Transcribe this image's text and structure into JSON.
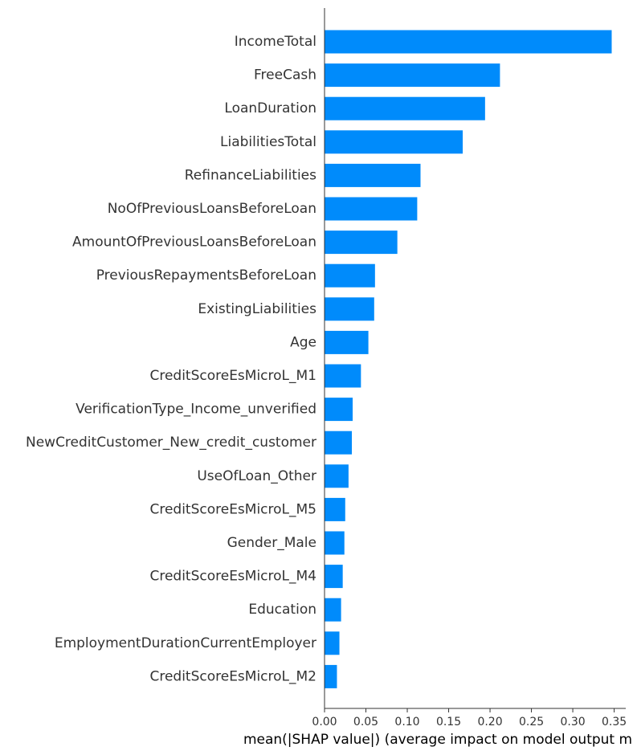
{
  "chart_data": {
    "type": "bar",
    "orientation": "horizontal",
    "categories": [
      "IncomeTotal",
      "FreeCash",
      "LoanDuration",
      "LiabilitiesTotal",
      "RefinanceLiabilities",
      "NoOfPreviousLoansBeforeLoan",
      "AmountOfPreviousLoansBeforeLoan",
      "PreviousRepaymentsBeforeLoan",
      "ExistingLiabilities",
      "Age",
      "CreditScoreEsMicroL_M1",
      "VerificationType_Income_unverified",
      "NewCreditCustomer_New_credit_customer",
      "UseOfLoan_Other",
      "CreditScoreEsMicroL_M5",
      "Gender_Male",
      "CreditScoreEsMicroL_M4",
      "Education",
      "EmploymentDurationCurrentEmployer",
      "CreditScoreEsMicroL_M2"
    ],
    "values": [
      0.347,
      0.212,
      0.194,
      0.167,
      0.116,
      0.112,
      0.088,
      0.061,
      0.06,
      0.053,
      0.044,
      0.034,
      0.033,
      0.029,
      0.025,
      0.024,
      0.022,
      0.02,
      0.018,
      0.015
    ],
    "xlabel": "mean(|SHAP value|) (average impact on model output m",
    "xticks": [
      "0.00",
      "0.05",
      "0.10",
      "0.15",
      "0.20",
      "0.25",
      "0.30",
      "0.35"
    ],
    "xlim": [
      0,
      0.364
    ],
    "grid": false,
    "bar_color": "#008bfb",
    "axis_color": "#333333"
  }
}
